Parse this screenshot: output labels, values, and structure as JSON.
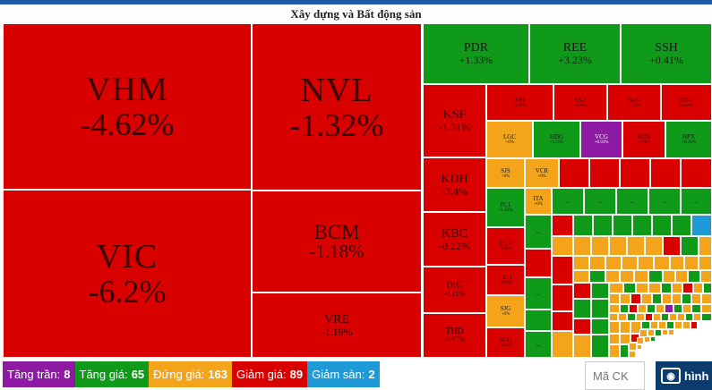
{
  "title": "Xây dựng và Bất động sản",
  "tiles": {
    "vhm": {
      "sym": "VHM",
      "pct": "-4.62%"
    },
    "nvl": {
      "sym": "NVL",
      "pct": "-1.32%"
    },
    "vic": {
      "sym": "VIC",
      "pct": "-6.2%"
    },
    "bcm": {
      "sym": "BCM",
      "pct": "-1.18%"
    },
    "vre": {
      "sym": "VRE",
      "pct": "-1.19%"
    },
    "pdr": {
      "sym": "PDR",
      "pct": "+1.33%"
    },
    "ree": {
      "sym": "REE",
      "pct": "+3.23%"
    },
    "ssh": {
      "sym": "SSH",
      "pct": "+0.41%"
    },
    "ksf": {
      "sym": "KSF",
      "pct": "-1.31%"
    },
    "kdh": {
      "sym": "KDH",
      "pct": "-3.4%"
    },
    "kbc": {
      "sym": "KBC",
      "pct": "-0.22%"
    },
    "dig": {
      "sym": "DIG",
      "pct": "-4.11%"
    },
    "thd": {
      "sym": "THD",
      "pct": "-0.97%"
    },
    "vpi": {
      "sym": "VPI",
      "pct": "-0.33%"
    },
    "snz": {
      "sym": "SNZ",
      "pct": "-0.56%"
    },
    "nlg": {
      "sym": "NLG",
      "pct": "-1.31%"
    },
    "dxg": {
      "sym": "DXG",
      "pct": "-4.24%"
    },
    "lgc": {
      "sym": "LGC",
      "pct": "+0%"
    },
    "hdg": {
      "sym": "HDG",
      "pct": "+1.55%"
    },
    "vcg": {
      "sym": "VCG",
      "pct": "+6.93%"
    },
    "kos": {
      "sym": "KOS",
      "pct": "-2.78%"
    },
    "hpx": {
      "sym": "HPX",
      "pct": "+0.39%"
    },
    "sjs": {
      "sym": "SJS",
      "pct": "+0%"
    },
    "vcr": {
      "sym": "VCR",
      "pct": "+0%"
    },
    "pc1": {
      "sym": "PC1",
      "pct": "+1.42%"
    },
    "ita": {
      "sym": "ITA",
      "pct": "+0%"
    },
    "hut": {
      "sym": "HUT",
      "pct": "-2.66%"
    },
    "tch": {
      "sym": "TCH",
      "pct": "-0.62%"
    },
    "sjg": {
      "sym": "SJG",
      "pct": "+0%"
    },
    "scg": {
      "sym": "SCG",
      "pct": "-0.53%"
    }
  },
  "dots_label": "...",
  "legend": [
    {
      "label": "Tăng trần:",
      "count": "8",
      "color": "#8e1aa3"
    },
    {
      "label": "Tăng giá:",
      "count": "65",
      "color": "#0f9a1a"
    },
    {
      "label": "Đứng giá:",
      "count": "163",
      "color": "#f3a41a"
    },
    {
      "label": "Giảm giá:",
      "count": "89",
      "color": "#d90000"
    },
    {
      "label": "Giảm sàn:",
      "count": "2",
      "color": "#1e9ad6"
    }
  ],
  "search": {
    "placeholder": "Mã CK"
  },
  "logo": {
    "text": "hình"
  },
  "colors": {
    "up": "#0f9a1a",
    "down": "#d90000",
    "ref": "#f3a41a",
    "ceiling": "#8e1aa3",
    "floor": "#1e9ad6"
  }
}
